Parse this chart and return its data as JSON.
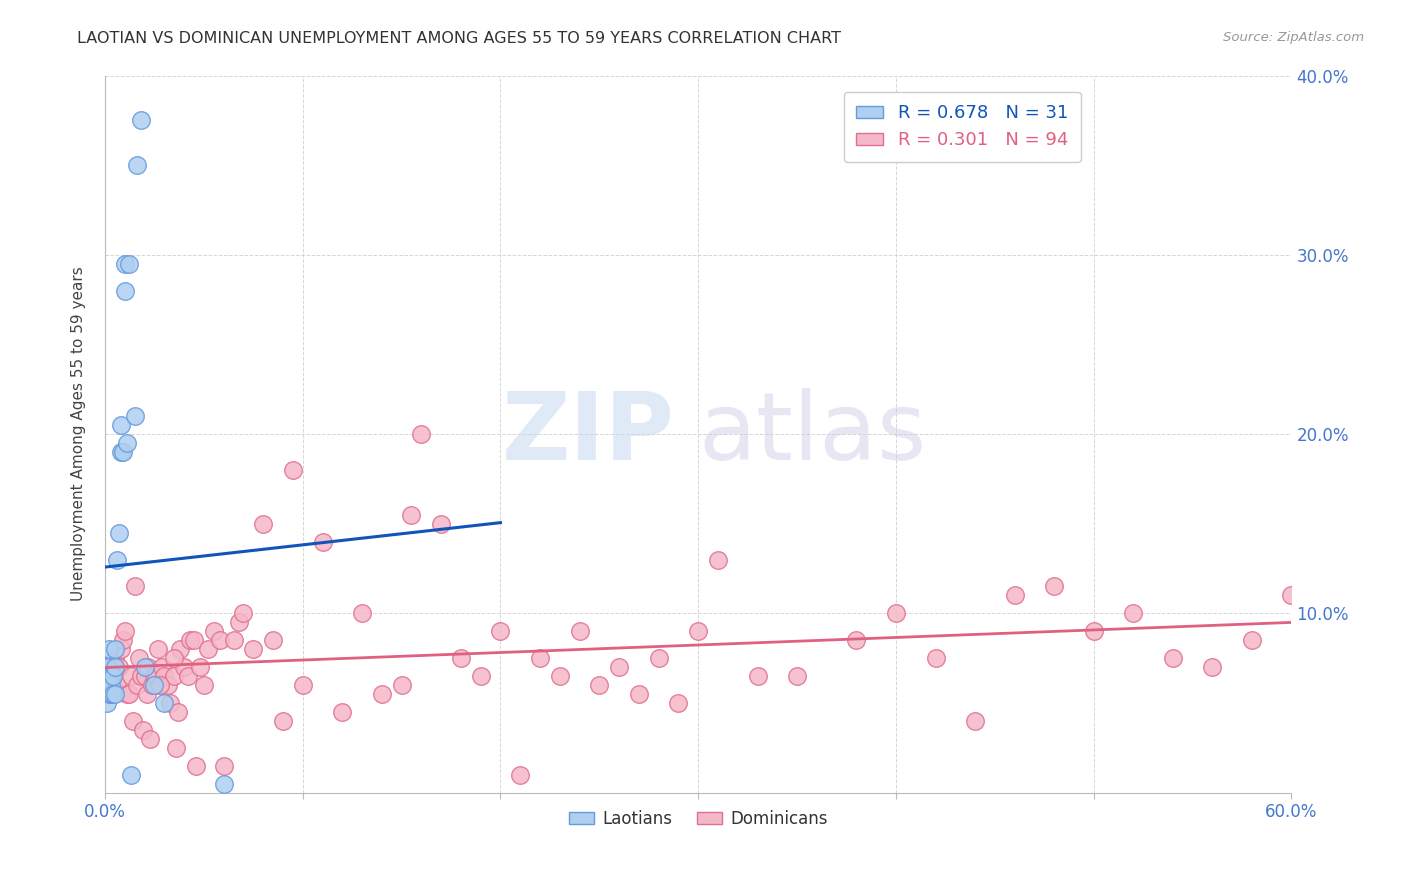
{
  "title": "LAOTIAN VS DOMINICAN UNEMPLOYMENT AMONG AGES 55 TO 59 YEARS CORRELATION CHART",
  "source": "Source: ZipAtlas.com",
  "ylabel": "Unemployment Among Ages 55 to 59 years",
  "xlim": [
    0.0,
    0.6
  ],
  "ylim": [
    0.0,
    0.4
  ],
  "xticks": [
    0.0,
    0.1,
    0.2,
    0.3,
    0.4,
    0.5,
    0.6
  ],
  "xtick_labels_show": [
    "0.0%",
    "",
    "",
    "",
    "",
    "",
    "60.0%"
  ],
  "yticks": [
    0.0,
    0.1,
    0.2,
    0.3,
    0.4
  ],
  "ytick_labels_right": [
    "",
    "10.0%",
    "20.0%",
    "30.0%",
    "40.0%"
  ],
  "laotian_color": "#aecff0",
  "laotian_edge": "#6699dd",
  "dominican_color": "#f5b8c8",
  "dominican_edge": "#e07090",
  "laotian_line_color": "#1155bb",
  "dominican_line_color": "#e06080",
  "R_laotian": "0.678",
  "N_laotian": "31",
  "R_dominican": "0.301",
  "N_dominican": "94",
  "watermark_zip": "ZIP",
  "watermark_atlas": "atlas",
  "laotian_x": [
    0.001,
    0.001,
    0.001,
    0.002,
    0.002,
    0.002,
    0.003,
    0.003,
    0.003,
    0.004,
    0.004,
    0.005,
    0.005,
    0.005,
    0.006,
    0.007,
    0.008,
    0.008,
    0.009,
    0.01,
    0.01,
    0.011,
    0.012,
    0.013,
    0.015,
    0.016,
    0.018,
    0.02,
    0.025,
    0.03,
    0.06
  ],
  "laotian_y": [
    0.05,
    0.06,
    0.07,
    0.055,
    0.065,
    0.08,
    0.055,
    0.065,
    0.06,
    0.055,
    0.065,
    0.07,
    0.08,
    0.055,
    0.13,
    0.145,
    0.19,
    0.205,
    0.19,
    0.28,
    0.295,
    0.195,
    0.295,
    0.01,
    0.21,
    0.35,
    0.375,
    0.07,
    0.06,
    0.05,
    0.005
  ],
  "dominican_x": [
    0.001,
    0.002,
    0.003,
    0.004,
    0.005,
    0.006,
    0.007,
    0.008,
    0.009,
    0.01,
    0.011,
    0.012,
    0.013,
    0.014,
    0.015,
    0.016,
    0.017,
    0.018,
    0.019,
    0.02,
    0.021,
    0.022,
    0.023,
    0.024,
    0.025,
    0.026,
    0.027,
    0.028,
    0.029,
    0.03,
    0.032,
    0.033,
    0.035,
    0.036,
    0.037,
    0.038,
    0.04,
    0.042,
    0.043,
    0.045,
    0.046,
    0.048,
    0.05,
    0.052,
    0.055,
    0.058,
    0.06,
    0.065,
    0.068,
    0.07,
    0.075,
    0.08,
    0.085,
    0.09,
    0.095,
    0.1,
    0.11,
    0.12,
    0.13,
    0.14,
    0.15,
    0.16,
    0.17,
    0.18,
    0.19,
    0.2,
    0.21,
    0.22,
    0.23,
    0.24,
    0.25,
    0.26,
    0.27,
    0.28,
    0.3,
    0.31,
    0.33,
    0.35,
    0.38,
    0.4,
    0.42,
    0.44,
    0.46,
    0.48,
    0.5,
    0.52,
    0.54,
    0.56,
    0.58,
    0.6,
    0.035,
    0.028,
    0.155,
    0.29
  ],
  "dominican_y": [
    0.06,
    0.065,
    0.07,
    0.06,
    0.075,
    0.06,
    0.07,
    0.08,
    0.085,
    0.09,
    0.055,
    0.055,
    0.065,
    0.04,
    0.115,
    0.06,
    0.075,
    0.065,
    0.035,
    0.065,
    0.055,
    0.07,
    0.03,
    0.06,
    0.065,
    0.065,
    0.08,
    0.06,
    0.07,
    0.065,
    0.06,
    0.05,
    0.065,
    0.025,
    0.045,
    0.08,
    0.07,
    0.065,
    0.085,
    0.085,
    0.015,
    0.07,
    0.06,
    0.08,
    0.09,
    0.085,
    0.015,
    0.085,
    0.095,
    0.1,
    0.08,
    0.15,
    0.085,
    0.04,
    0.18,
    0.06,
    0.14,
    0.045,
    0.1,
    0.055,
    0.06,
    0.2,
    0.15,
    0.075,
    0.065,
    0.09,
    0.01,
    0.075,
    0.065,
    0.09,
    0.06,
    0.07,
    0.055,
    0.075,
    0.09,
    0.13,
    0.065,
    0.065,
    0.085,
    0.1,
    0.075,
    0.04,
    0.11,
    0.115,
    0.09,
    0.1,
    0.075,
    0.07,
    0.085,
    0.11,
    0.075,
    0.06,
    0.155,
    0.05
  ]
}
